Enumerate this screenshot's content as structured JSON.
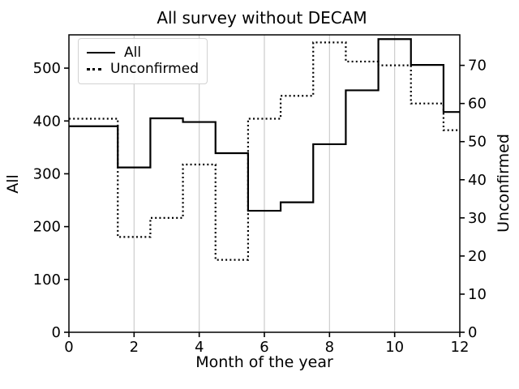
{
  "chart_data": {
    "type": "line",
    "subtype": "step",
    "title": "All survey without DECAM",
    "xlabel": "Month of the year",
    "ylabel_left": "All",
    "ylabel_right": "Unconfirmed",
    "xlim": [
      0,
      12
    ],
    "ylim_left": [
      0,
      563
    ],
    "ylim_right": [
      0,
      78
    ],
    "xticks": [
      0,
      2,
      4,
      6,
      8,
      10,
      12
    ],
    "yticks_left": [
      0,
      100,
      200,
      300,
      400,
      500
    ],
    "yticks_right": [
      0,
      10,
      20,
      30,
      40,
      50,
      60,
      70
    ],
    "gridlines_x": [
      2,
      4,
      6,
      8,
      10
    ],
    "grid": "vertical-only",
    "months": [
      1,
      2,
      3,
      4,
      5,
      6,
      7,
      8,
      9,
      10,
      11,
      12
    ],
    "step_edges": [
      0,
      1.5,
      2.5,
      3.5,
      4.5,
      5.5,
      6.5,
      7.5,
      8.5,
      9.5,
      10.5,
      11.5,
      12
    ],
    "series": [
      {
        "name": "All",
        "axis": "left",
        "style": "solid",
        "values": [
          390,
          312,
          405,
          398,
          339,
          230,
          246,
          356,
          458,
          555,
          506,
          417
        ]
      },
      {
        "name": "Unconfirmed",
        "axis": "right",
        "style": "dotted",
        "values": [
          56,
          25,
          30,
          44,
          19,
          56,
          62,
          76,
          71,
          70,
          60,
          53
        ]
      }
    ],
    "legend": {
      "position": "upper-left",
      "entries": [
        "All",
        "Unconfirmed"
      ]
    },
    "colors": {
      "line": "#000000",
      "grid": "#cccccc",
      "background": "#ffffff",
      "legend_border": "#d2d2d2",
      "text": "#000000"
    }
  }
}
